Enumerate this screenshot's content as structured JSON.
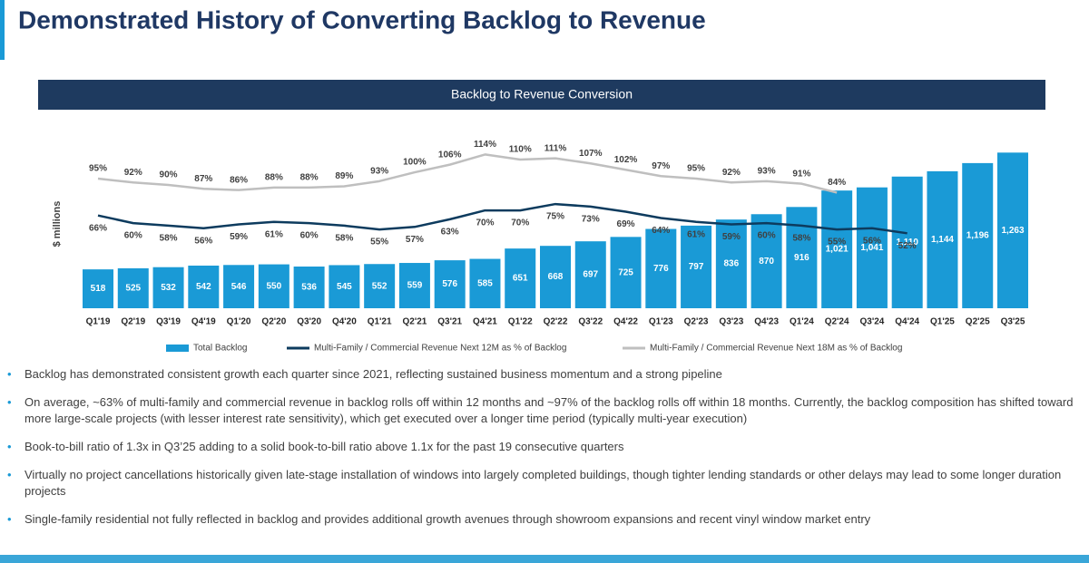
{
  "header": {
    "title": "Demonstrated History of Converting Backlog to Revenue"
  },
  "chart_data": {
    "type": "bar",
    "title": "Backlog to Revenue Conversion",
    "ylabel": "$ millions",
    "categories": [
      "Q1'19",
      "Q2'19",
      "Q3'19",
      "Q4'19",
      "Q1'20",
      "Q2'20",
      "Q3'20",
      "Q4'20",
      "Q1'21",
      "Q2'21",
      "Q3'21",
      "Q4'21",
      "Q1'22",
      "Q2'22",
      "Q3'22",
      "Q4'22",
      "Q1'23",
      "Q2'23",
      "Q3'23",
      "Q4'23",
      "Q1'24",
      "Q2'24",
      "Q3'24",
      "Q4'24",
      "Q1'25",
      "Q2'25",
      "Q3'25"
    ],
    "ylim": [
      270,
      1340
    ],
    "y2lim": [
      -7,
      125
    ],
    "legend": "bottom",
    "series": [
      {
        "name": "Total Backlog",
        "type": "bar",
        "color": "#1a9ad6",
        "values": [
          518,
          525,
          532,
          542,
          546,
          550,
          536,
          545,
          552,
          559,
          576,
          585,
          651,
          668,
          697,
          725,
          776,
          797,
          836,
          870,
          916,
          1021,
          1041,
          1110,
          1144,
          1196,
          1263
        ],
        "value_labels": [
          "518",
          "525",
          "532",
          "542",
          "546",
          "550",
          "536",
          "545",
          "552",
          "559",
          "576",
          "585",
          "651",
          "668",
          "697",
          "725",
          "776",
          "797",
          "836",
          "870",
          "916",
          "1,021",
          "1,041",
          "1,110",
          "1,144",
          "1,196",
          "1,263"
        ]
      },
      {
        "name": "Multi-Family / Commercial Revenue Next 12M as % of Backlog",
        "type": "line",
        "axis": "y2",
        "color": "#0d3b5e",
        "values": [
          66,
          60,
          58,
          56,
          59,
          61,
          60,
          58,
          55,
          57,
          63,
          70,
          70,
          75,
          73,
          69,
          64,
          61,
          59,
          60,
          58,
          55,
          56,
          52,
          null,
          null,
          null
        ],
        "value_labels": [
          "66%",
          "60%",
          "58%",
          "56%",
          "59%",
          "61%",
          "60%",
          "58%",
          "55%",
          "57%",
          "63%",
          "70%",
          "70%",
          "75%",
          "73%",
          "69%",
          "64%",
          "61%",
          "59%",
          "60%",
          "58%",
          "55%",
          "56%",
          "52%",
          null,
          null,
          null
        ]
      },
      {
        "name": "Multi-Family / Commercial Revenue Next 18M as % of Backlog",
        "type": "line",
        "axis": "y2",
        "color": "#bfbfbf",
        "values": [
          95,
          92,
          90,
          87,
          86,
          88,
          88,
          89,
          93,
          100,
          106,
          114,
          110,
          111,
          107,
          102,
          97,
          95,
          92,
          93,
          91,
          84,
          null,
          null,
          null,
          null,
          null
        ],
        "value_labels": [
          "95%",
          "92%",
          "90%",
          "87%",
          "86%",
          "88%",
          "88%",
          "89%",
          "93%",
          "100%",
          "106%",
          "114%",
          "110%",
          "111%",
          "107%",
          "102%",
          "97%",
          "95%",
          "92%",
          "93%",
          "91%",
          "84%",
          null,
          null,
          null,
          null,
          null
        ]
      }
    ]
  },
  "bullets": [
    "Backlog has demonstrated consistent growth each quarter since 2021, reflecting sustained business momentum and a strong pipeline",
    "On average, ~63% of multi-family and commercial revenue in backlog rolls off within 12 months and ~97% of the backlog rolls off within 18 months. Currently, the backlog composition has shifted toward more large-scale projects (with lesser interest rate sensitivity), which get executed over a longer time period (typically multi-year execution)",
    "Book-to-bill ratio of 1.3x in Q3’25 adding to a solid book-to-bill ratio above 1.1x for the past 19 consecutive quarters",
    "Virtually no project cancellations historically given late-stage installation of windows into largely completed buildings, though tighter lending standards or other delays may lead to some longer duration projects",
    "Single-family residential not fully reflected in backlog and provides additional growth avenues through showroom expansions and recent vinyl window market entry"
  ]
}
